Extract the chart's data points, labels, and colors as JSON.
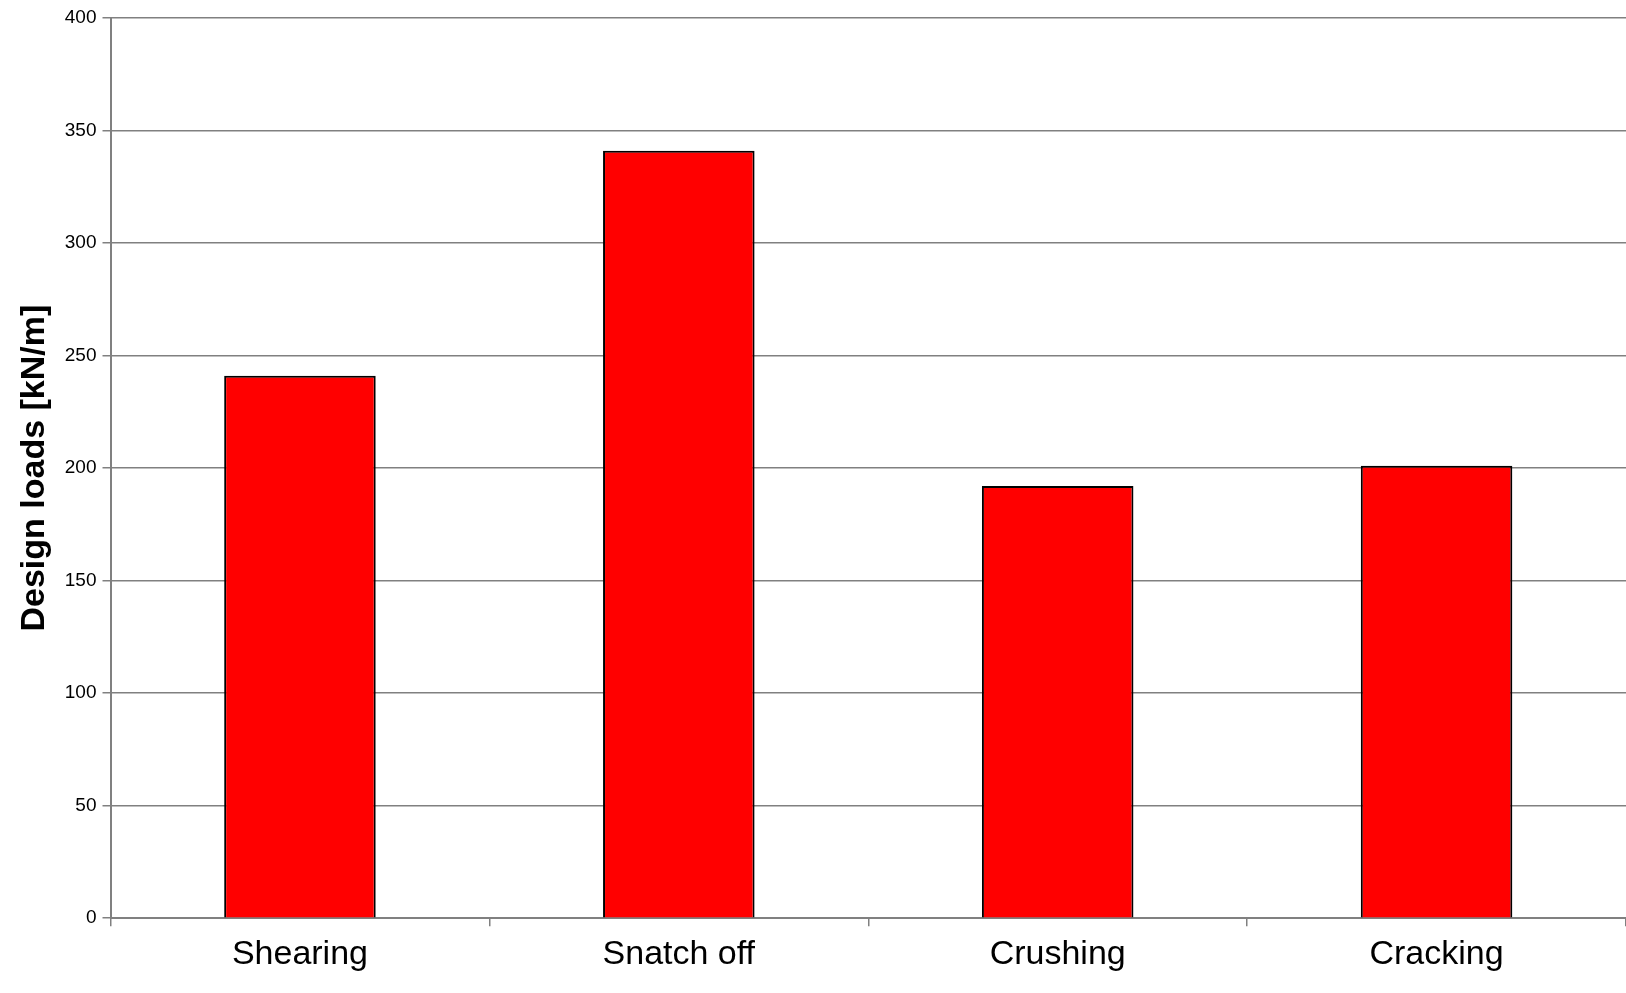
{
  "chart_data": {
    "type": "bar",
    "ylabel": "Design loads [kN/m]",
    "categories": [
      "Shearing",
      "Snatch off",
      "Crushing",
      "Cracking"
    ],
    "values": [
      241,
      341,
      192,
      201
    ],
    "color": "#ff0000",
    "ylim": [
      0,
      400
    ],
    "yticks": [
      0,
      50,
      100,
      150,
      200,
      250,
      300,
      350,
      400
    ],
    "grid": "y",
    "legend": false
  }
}
